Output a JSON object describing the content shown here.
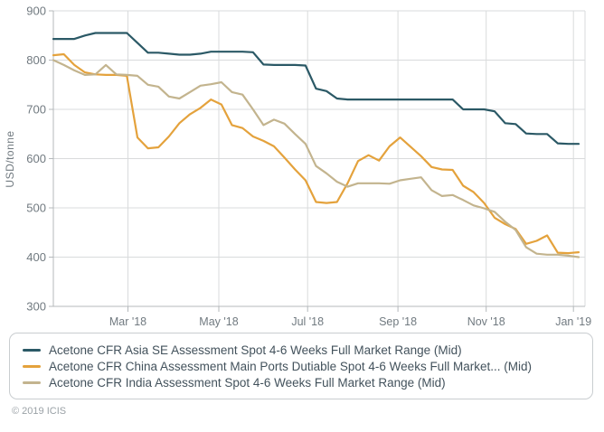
{
  "chart_data": {
    "type": "line",
    "title": "",
    "ylabel": "USD/tonne",
    "ylim": [
      300,
      900
    ],
    "y_ticks": [
      300,
      400,
      500,
      600,
      700,
      800,
      900
    ],
    "x_tick_labels": [
      "Mar '18",
      "May '18",
      "Jul '18",
      "Sep '18",
      "Nov '18",
      "Jan '19"
    ],
    "x_tick_weeks": [
      7.1,
      15.75,
      24.2,
      32.8,
      41.2,
      49.5
    ],
    "grid": true,
    "legend_position": "bottom",
    "x_range_note": "weekly points, mid Jan 2018 to early Jan 2019",
    "series": [
      {
        "key": "asia-se",
        "name": "Acetone CFR Asia SE Assessment Spot 4-6 Weeks Full Market Range (Mid)",
        "color": "#2b5966",
        "values": [
          843,
          843,
          843,
          850,
          855,
          855,
          855,
          855,
          835,
          815,
          815,
          813,
          811,
          811,
          813,
          817,
          817,
          817,
          817,
          816,
          791,
          790,
          790,
          790,
          789,
          742,
          737,
          722,
          720,
          720,
          720,
          720,
          720,
          720,
          720,
          720,
          720,
          720,
          720,
          700,
          700,
          700,
          696,
          672,
          670,
          651,
          650,
          650,
          631,
          630,
          630
        ]
      },
      {
        "key": "china",
        "name": "Acetone CFR China Assessment Main Ports Dutiable Spot 4-6 Weeks Full Market... (Mid)",
        "color": "#e4a23c",
        "values": [
          810,
          812,
          790,
          775,
          771,
          770,
          770,
          768,
          643,
          621,
          623,
          645,
          672,
          690,
          703,
          720,
          710,
          668,
          662,
          645,
          636,
          625,
          602,
          578,
          556,
          512,
          510,
          512,
          550,
          595,
          607,
          596,
          625,
          643,
          624,
          605,
          583,
          578,
          577,
          545,
          532,
          510,
          480,
          467,
          457,
          427,
          433,
          444,
          409,
          408,
          410
        ]
      },
      {
        "key": "india",
        "name": "Acetone CFR India Assessment Spot 4-6 Weeks Full Market Range (Mid)",
        "color": "#c3b48e",
        "values": [
          800,
          790,
          779,
          770,
          771,
          790,
          771,
          770,
          768,
          750,
          746,
          726,
          722,
          735,
          748,
          751,
          755,
          735,
          730,
          700,
          668,
          679,
          671,
          650,
          630,
          585,
          570,
          553,
          543,
          550,
          550,
          550,
          549,
          556,
          559,
          562,
          536,
          524,
          526,
          516,
          505,
          499,
          492,
          472,
          455,
          420,
          407,
          405,
          405,
          403,
          400
        ]
      }
    ],
    "colors": {
      "gridline": "#d9dbdc",
      "axis": "#b4b8bb",
      "tick_label": "#717a80",
      "legend_text": "#43525c",
      "copyright_text": "#9aa1a6"
    }
  },
  "footer": {
    "copyright": "© 2019 ICIS"
  }
}
